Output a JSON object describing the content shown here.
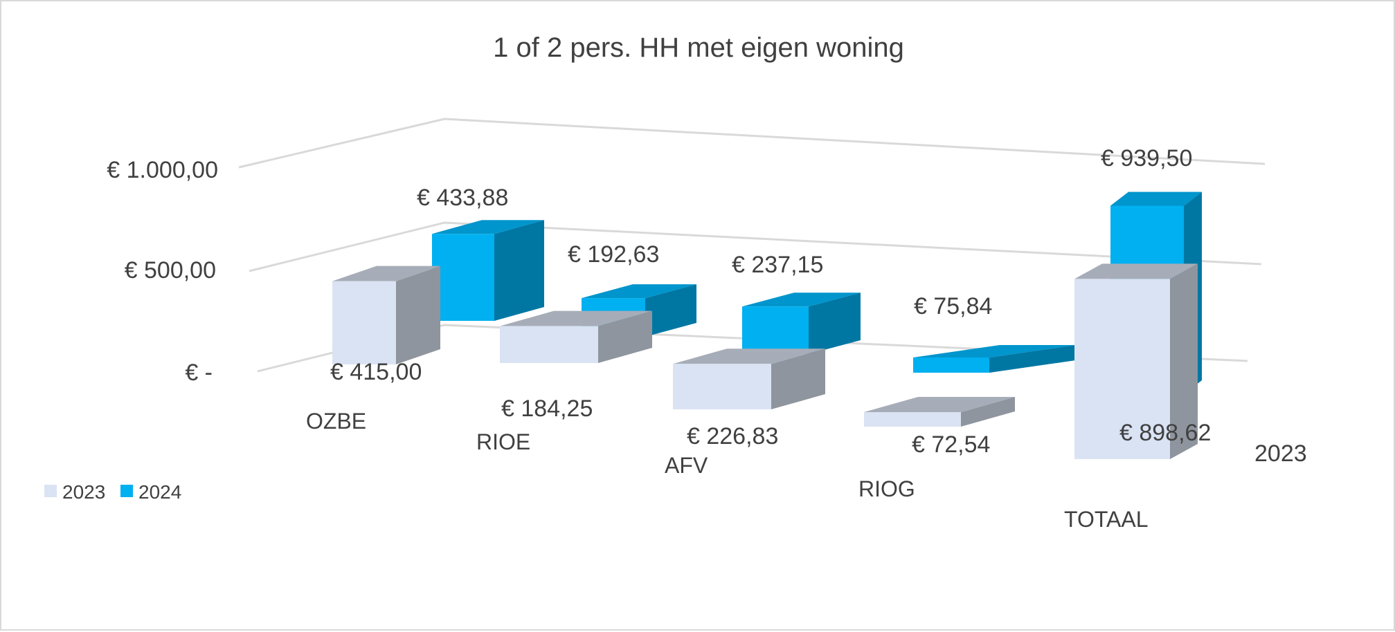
{
  "chart_data": {
    "type": "bar",
    "title": "1 of 2 pers. HH met eigen woning",
    "categories": [
      "OZBE",
      "RIOE",
      "AFV",
      "RIOG",
      "TOTAAL"
    ],
    "series": [
      {
        "name": "2023",
        "values": [
          415.0,
          184.25,
          226.83,
          72.54,
          898.62
        ],
        "labels": [
          "€ 415,00",
          "€ 184,25",
          "€ 226,83",
          "€ 72,54",
          "€ 898,62"
        ],
        "color": "#dae3f3"
      },
      {
        "name": "2024",
        "values": [
          433.88,
          192.63,
          237.15,
          75.84,
          939.5
        ],
        "labels": [
          "€ 433,88",
          "€ 192,63",
          "€ 237,15",
          "€ 75,84",
          "€ 939,50"
        ],
        "color": "#00b0f0"
      }
    ],
    "y_ticks": [
      "€ -",
      "€ 500,00",
      "€ 1.000,00"
    ],
    "y_tick_values": [
      0,
      500,
      1000
    ],
    "depth_axis_label": "2023",
    "ylim": [
      0,
      1000
    ],
    "grid": true,
    "legend_position": "bottom-left",
    "style": "3d-column"
  }
}
